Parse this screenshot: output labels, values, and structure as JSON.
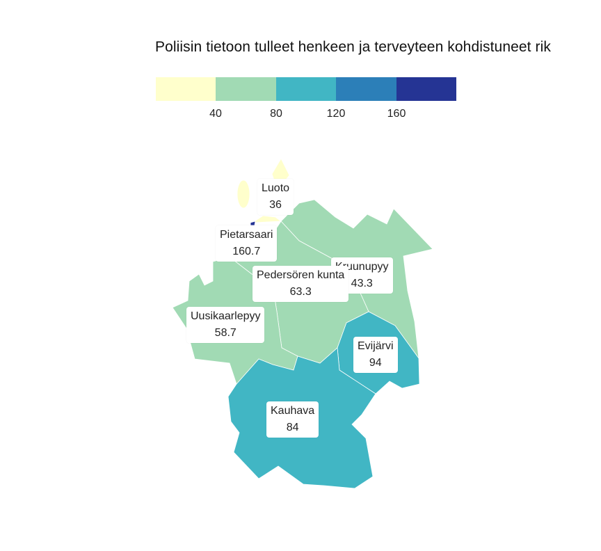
{
  "title": "Poliisin tietoon tulleet henkeen ja terveyteen kohdistuneet rik",
  "legend": {
    "colors": [
      "#ffffcc",
      "#a1dab4",
      "#41b6c4",
      "#2c7fb8",
      "#253494"
    ],
    "ticks": [
      "40",
      "80",
      "120",
      "160"
    ]
  },
  "regions": [
    {
      "name": "Luoto",
      "value": "36",
      "color": "#ffffcc"
    },
    {
      "name": "Pietarsaari",
      "value": "160.7",
      "color": "#253494"
    },
    {
      "name": "Kruunupyy",
      "value": "43.3",
      "color": "#a1dab4"
    },
    {
      "name": "Pedersören kunta",
      "value": "63.3",
      "color": "#a1dab4"
    },
    {
      "name": "Uusikaarlepyy",
      "value": "58.7",
      "color": "#a1dab4"
    },
    {
      "name": "Evijärvi",
      "value": "94",
      "color": "#41b6c4"
    },
    {
      "name": "Kauhava",
      "value": "84",
      "color": "#41b6c4"
    }
  ]
}
